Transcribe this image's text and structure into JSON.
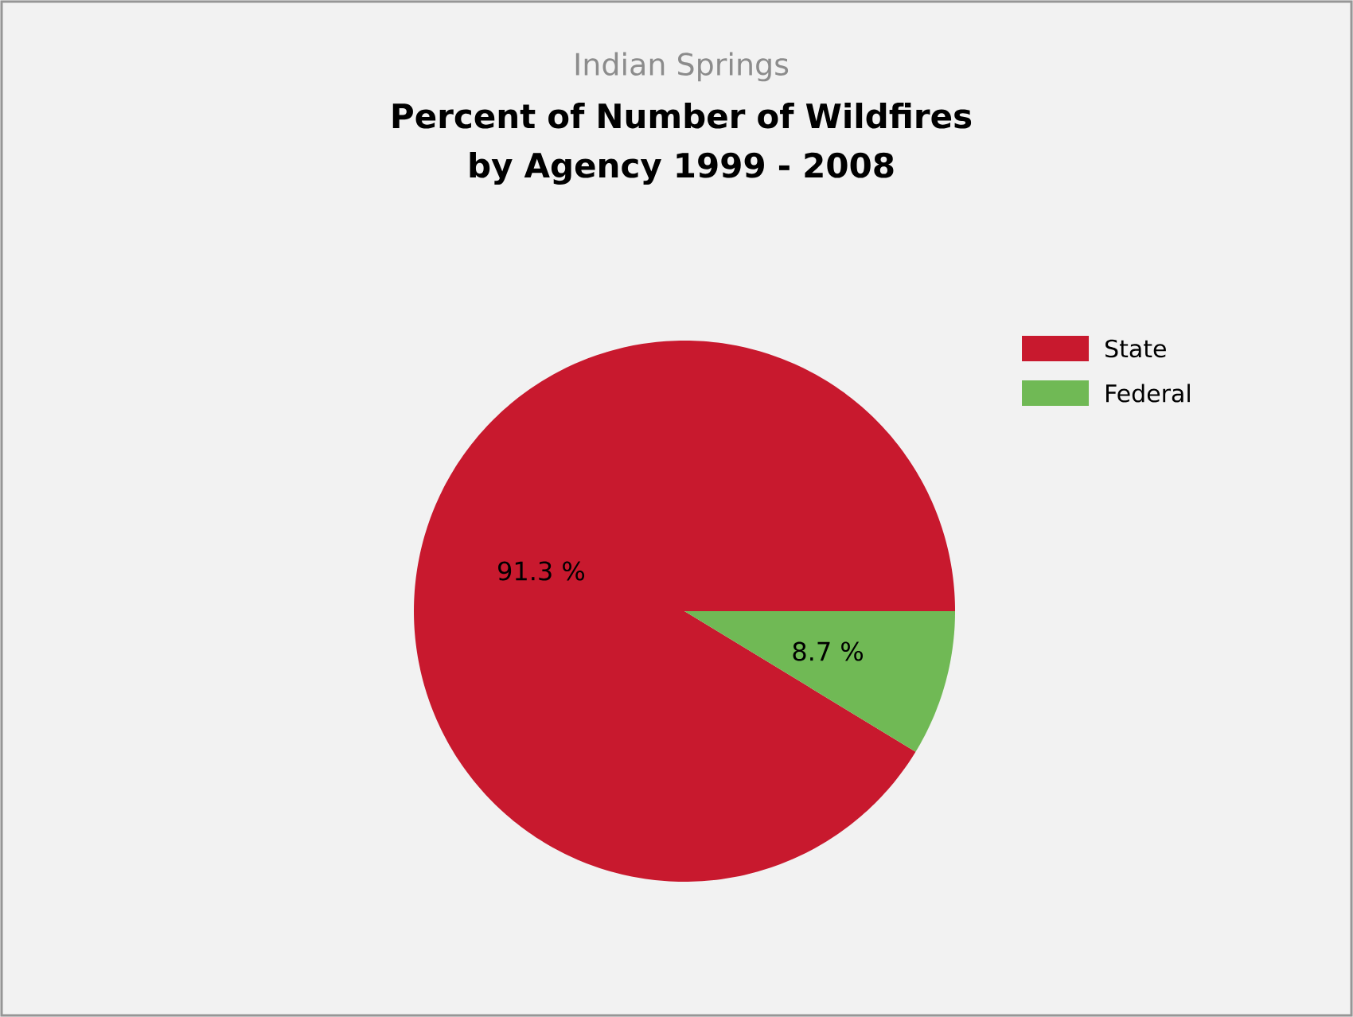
{
  "chart_data": {
    "type": "pie",
    "subtitle": "Indian Springs",
    "title": "Percent of Number of Wildfires by Agency 1999 - 2008",
    "categories": [
      "State",
      "Federal"
    ],
    "values": [
      91.3,
      8.7
    ],
    "colors": [
      "#c8192e",
      "#70b955"
    ],
    "value_labels": [
      "91.3 %",
      "8.7 %"
    ],
    "legend": "top right"
  }
}
